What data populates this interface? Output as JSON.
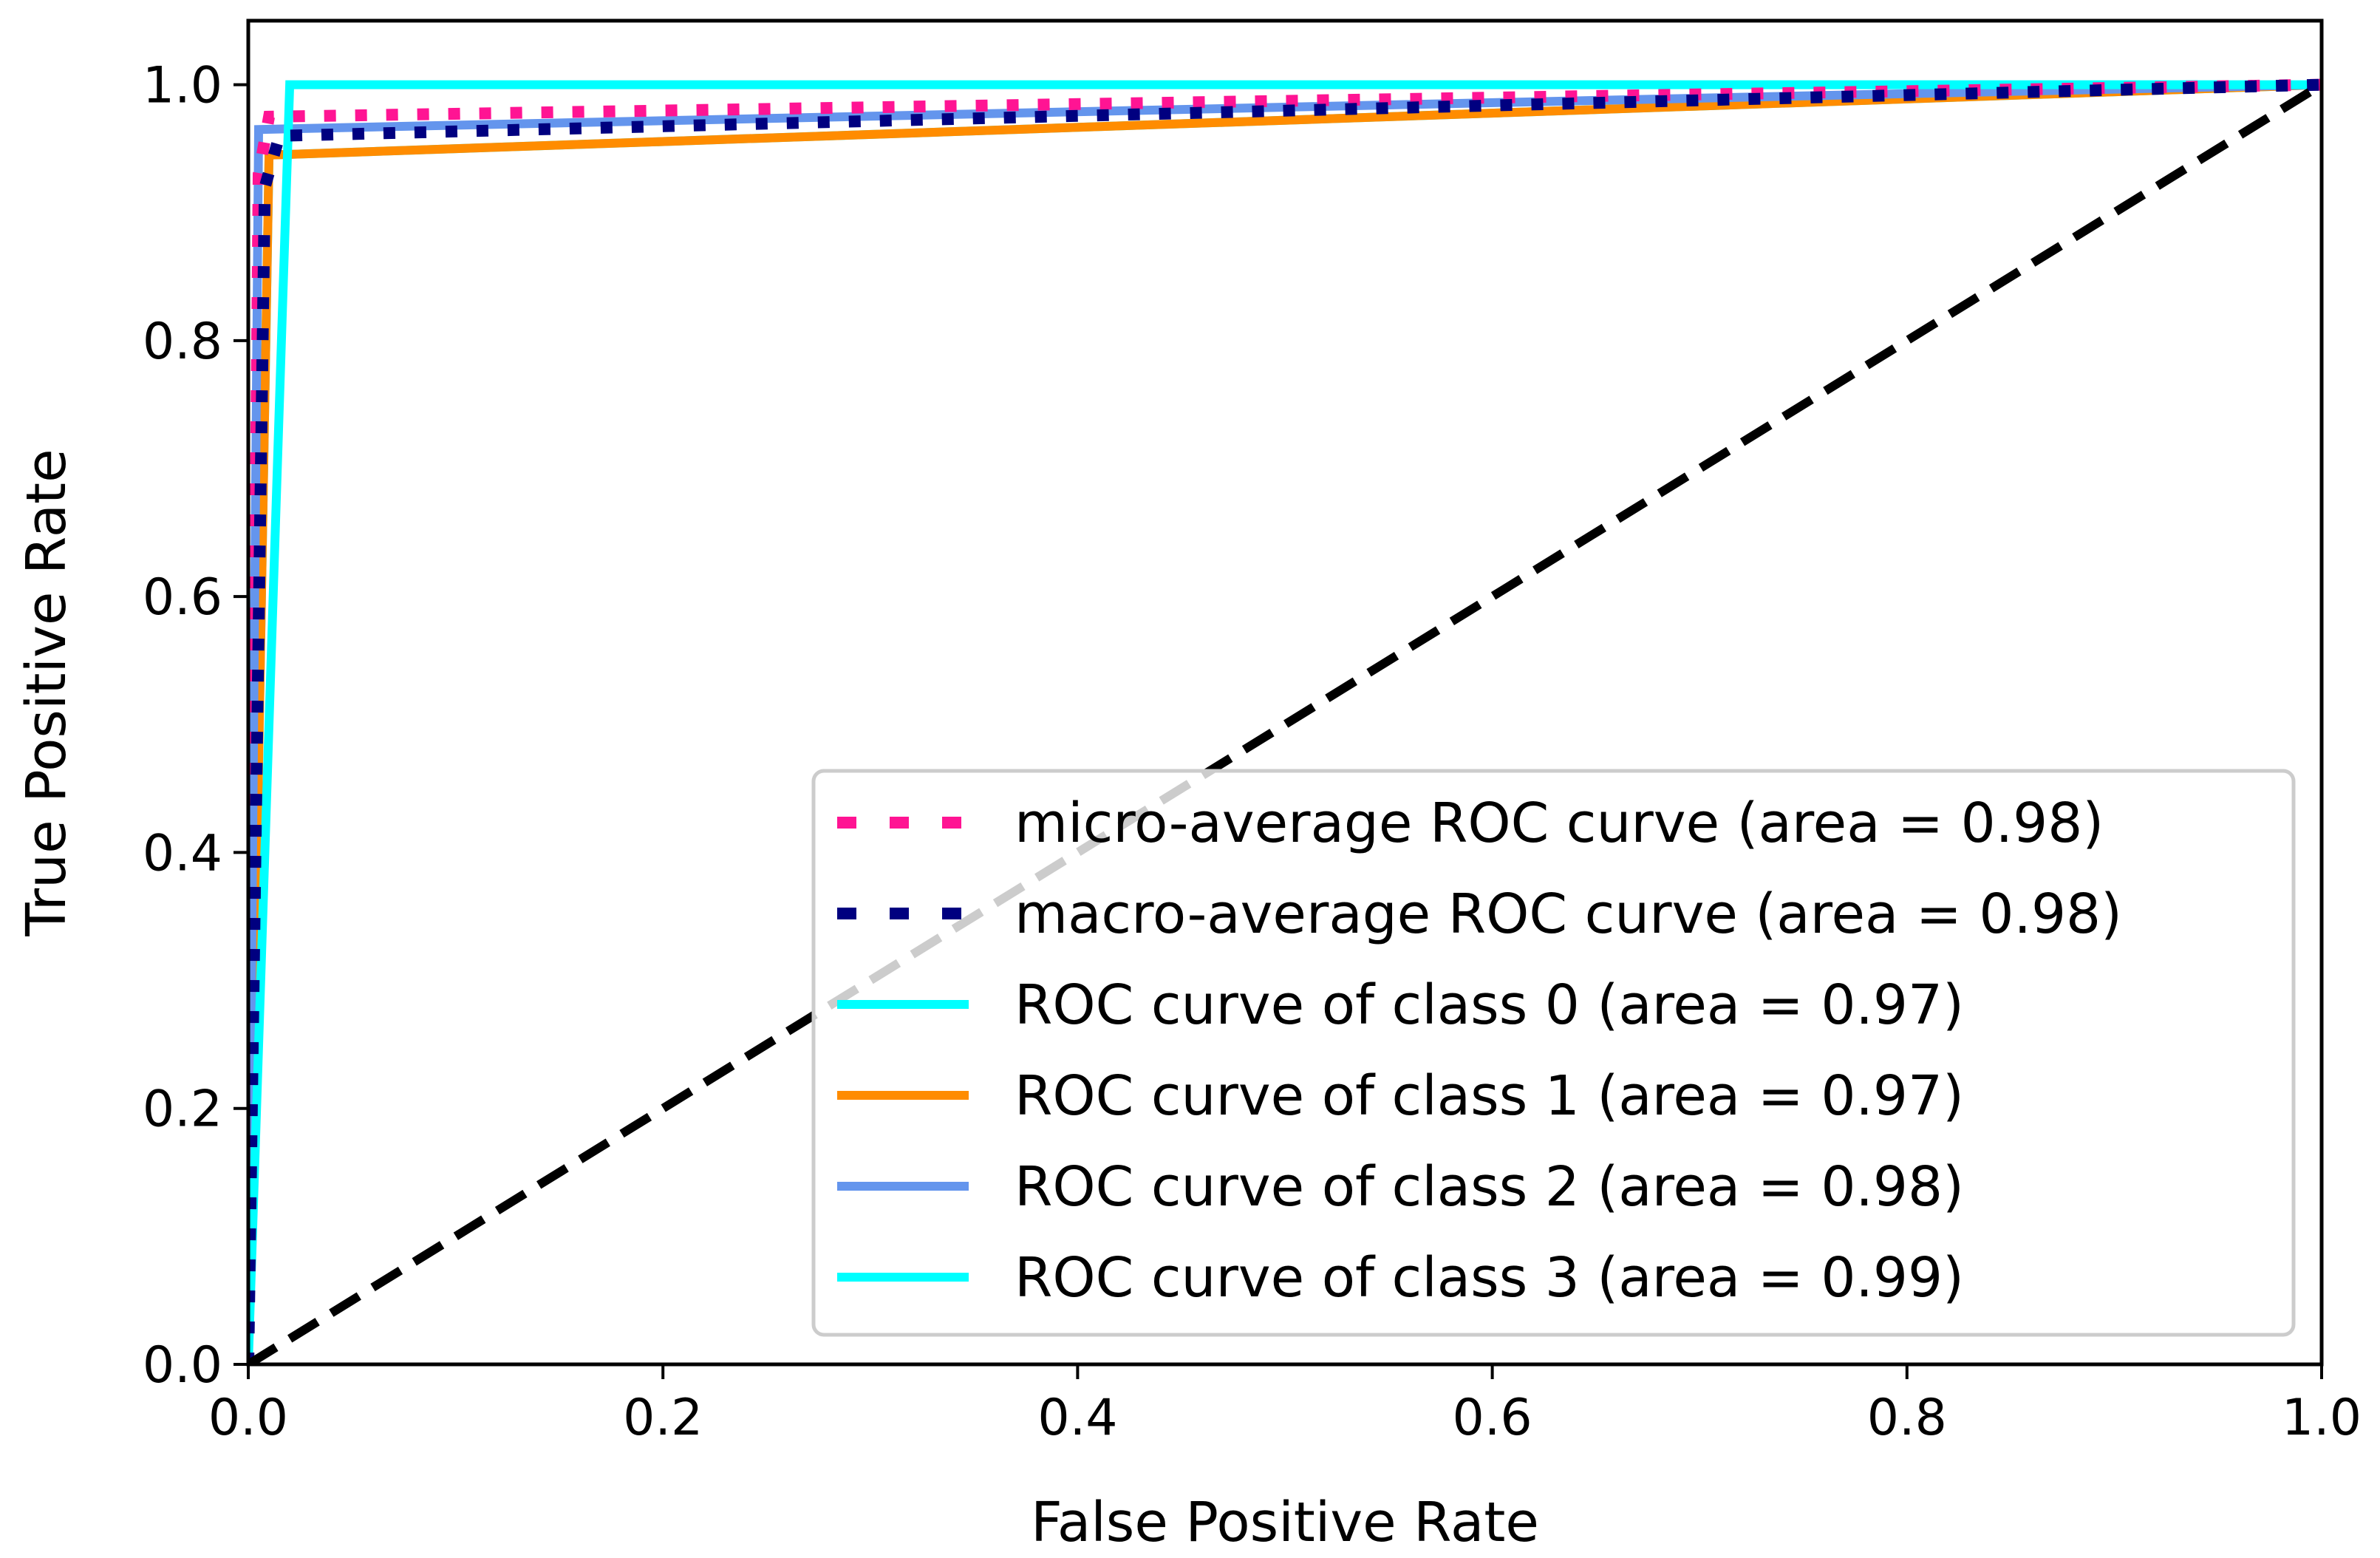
{
  "chart_data": {
    "type": "line",
    "title": "",
    "xlabel": "False Positive Rate",
    "ylabel": "True Positive Rate",
    "xlim": [
      0.0,
      1.0
    ],
    "ylim": [
      0.0,
      1.05
    ],
    "xticks": [
      "0.0",
      "0.2",
      "0.4",
      "0.6",
      "0.8",
      "1.0"
    ],
    "yticks": [
      "0.0",
      "0.2",
      "0.4",
      "0.6",
      "0.8",
      "1.0"
    ],
    "grid": false,
    "legend_position": "lower-right",
    "series": [
      {
        "name": "micro-average ROC curve (area = 0.98)",
        "color": "#ff1493",
        "style": "dotted",
        "x": [
          0.0,
          0.005,
          0.01,
          1.0
        ],
        "y": [
          0.0,
          0.93,
          0.975,
          1.0
        ]
      },
      {
        "name": "macro-average ROC curve (area = 0.98)",
        "color": "#000080",
        "style": "dotted",
        "x": [
          0.0,
          0.008,
          0.015,
          1.0
        ],
        "y": [
          0.0,
          0.92,
          0.96,
          1.0
        ]
      },
      {
        "name": "ROC curve of class 0 (area = 0.97)",
        "color": "#00ffff",
        "style": "solid",
        "x": [
          0.0,
          0.01,
          1.0
        ],
        "y": [
          0.0,
          0.945,
          1.0
        ]
      },
      {
        "name": "ROC curve of class 1 (area = 0.97)",
        "color": "#ff8c00",
        "style": "solid",
        "x": [
          0.0,
          0.01,
          1.0
        ],
        "y": [
          0.0,
          0.945,
          1.0
        ]
      },
      {
        "name": "ROC curve of class 2 (area = 0.98)",
        "color": "#6495ed",
        "style": "solid",
        "x": [
          0.0,
          0.005,
          1.0
        ],
        "y": [
          0.0,
          0.965,
          1.0
        ]
      },
      {
        "name": "ROC curve of class 3 (area = 0.99)",
        "color": "#00ffff",
        "style": "solid",
        "x": [
          0.0,
          0.02,
          1.0
        ],
        "y": [
          0.0,
          1.0,
          1.0
        ]
      }
    ],
    "reference_line": {
      "name": "chance",
      "color": "#000000",
      "style": "dashed",
      "x": [
        0.0,
        1.0
      ],
      "y": [
        0.0,
        1.0
      ]
    }
  }
}
